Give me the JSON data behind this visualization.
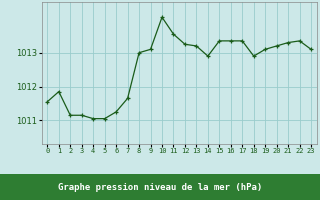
{
  "x": [
    0,
    1,
    2,
    3,
    4,
    5,
    6,
    7,
    8,
    9,
    10,
    11,
    12,
    13,
    14,
    15,
    16,
    17,
    18,
    19,
    20,
    21,
    22,
    23
  ],
  "y": [
    1011.55,
    1011.85,
    1011.15,
    1011.15,
    1011.05,
    1011.05,
    1011.25,
    1011.65,
    1013.0,
    1013.1,
    1014.05,
    1013.55,
    1013.25,
    1013.2,
    1012.9,
    1013.35,
    1013.35,
    1013.35,
    1012.9,
    1013.1,
    1013.2,
    1013.3,
    1013.35,
    1013.1
  ],
  "line_color": "#1a5c1a",
  "marker": "+",
  "marker_color": "#1a5c1a",
  "bg_color": "#cce8e8",
  "label_bg_color": "#2e7d32",
  "grid_color": "#99cccc",
  "xlabel": "Graphe pression niveau de la mer (hPa)",
  "xlabel_color": "#ffffff",
  "tick_color": "#1a5c1a",
  "yticks": [
    1011,
    1012,
    1013
  ],
  "ylim": [
    1010.3,
    1014.5
  ],
  "xlim": [
    -0.5,
    23.5
  ],
  "figsize": [
    3.2,
    2.0
  ],
  "dpi": 100
}
